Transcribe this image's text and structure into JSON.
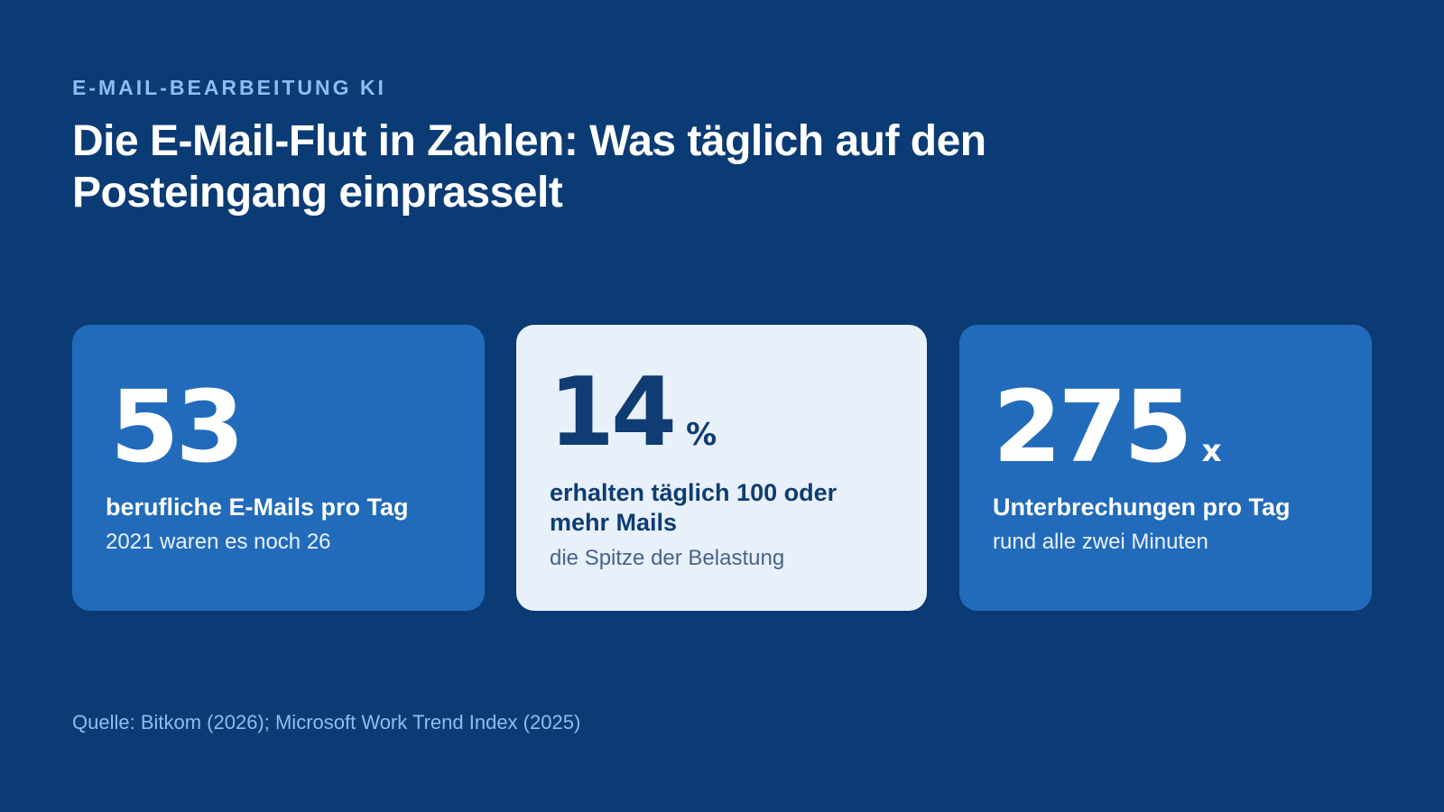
{
  "header": {
    "eyebrow": "E-MAIL-BEARBEITUNG KI",
    "title": "Die E-Mail-Flut in Zahlen: Was täglich auf den Posteingang einprasselt"
  },
  "stats": [
    {
      "number": "53",
      "unit": "",
      "label": "berufliche E-Mails pro Tag",
      "sublabel": "2021 waren es noch 26"
    },
    {
      "number": "14",
      "unit": "%",
      "label": "erhalten täglich 100 oder mehr Mails",
      "sublabel": "die Spitze der Belastung"
    },
    {
      "number": "275",
      "unit": "x",
      "label": "Unterbrechungen pro Tag",
      "sublabel": "rund alle zwei Minuten"
    }
  ],
  "footer": {
    "source": "Quelle: Bitkom (2026); Microsoft Work Trend Index (2025)"
  },
  "colors": {
    "background": "#0b3b74",
    "card_blue": "#226bbb",
    "card_light": "#e8f0fa",
    "accent_text": "#8fbcf0",
    "dark_text": "#0e3c73"
  }
}
